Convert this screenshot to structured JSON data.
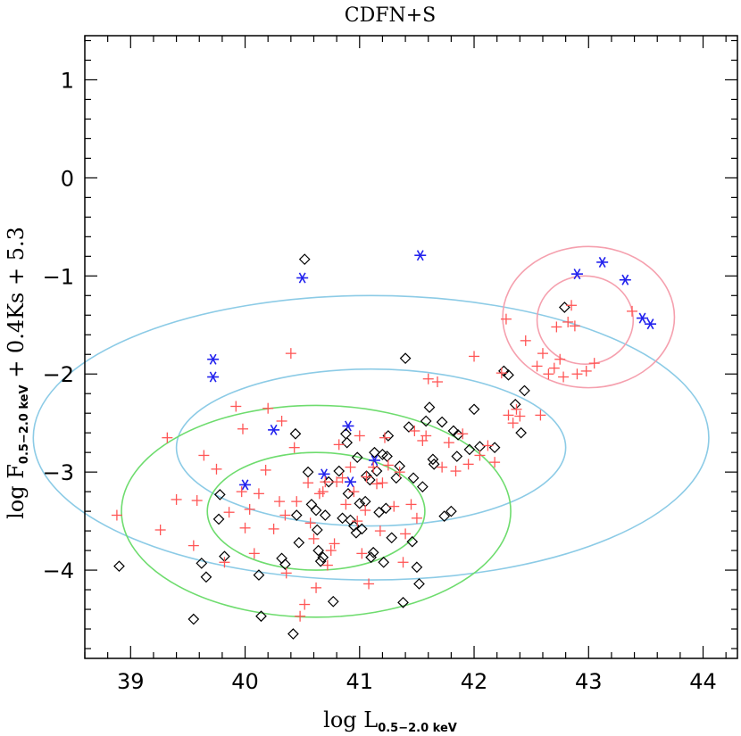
{
  "chart_data": {
    "type": "scatter",
    "title": "CDFN+S",
    "xlabel": {
      "main": "log L",
      "sub": "0.5−2.0 keV"
    },
    "ylabel": {
      "main": "log F",
      "sub": "0.5−2.0 keV",
      "suffix": " + 0.4Ks + 5.3"
    },
    "xlim": [
      38.6,
      44.3
    ],
    "ylim": [
      -4.9,
      1.45
    ],
    "xticks": [
      39,
      40,
      41,
      42,
      43,
      44
    ],
    "yticks": [
      1,
      0,
      -1,
      -2,
      -3,
      -4
    ],
    "xtick_labels": [
      "39",
      "40",
      "41",
      "42",
      "43",
      "44"
    ],
    "ytick_labels": [
      "1",
      "0",
      "−1",
      "−2",
      "−3",
      "−4"
    ],
    "colors": {
      "plus": "#ff5555",
      "diamond": "#000000",
      "asterisk": "#2222ee",
      "ellipse_blue": "#8ccbe6",
      "ellipse_green": "#6edc6e",
      "ellipse_pink": "#f5a0ae"
    },
    "ellipses": [
      {
        "name": "blue-outer",
        "cx": 41.1,
        "cy": -2.65,
        "rx": 2.95,
        "ry": 1.45,
        "color": "#8ccbe6"
      },
      {
        "name": "blue-inner",
        "cx": 41.1,
        "cy": -2.75,
        "rx": 1.7,
        "ry": 0.8,
        "color": "#8ccbe6"
      },
      {
        "name": "green-outer",
        "cx": 40.62,
        "cy": -3.4,
        "rx": 1.7,
        "ry": 1.08,
        "color": "#6edc6e"
      },
      {
        "name": "green-inner",
        "cx": 40.62,
        "cy": -3.4,
        "rx": 0.95,
        "ry": 0.6,
        "color": "#6edc6e"
      },
      {
        "name": "pink-outer",
        "cx": 43.0,
        "cy": -1.42,
        "rx": 0.75,
        "ry": 0.72,
        "color": "#f5a0ae"
      },
      {
        "name": "pink-inner",
        "cx": 42.97,
        "cy": -1.45,
        "rx": 0.42,
        "ry": 0.45,
        "color": "#f5a0ae"
      }
    ],
    "series": [
      {
        "name": "asterisk",
        "marker": "asterisk",
        "color": "#2222ee",
        "points": [
          [
            39.72,
            -1.85
          ],
          [
            39.72,
            -2.03
          ],
          [
            40.0,
            -3.13
          ],
          [
            40.25,
            -2.57
          ],
          [
            40.5,
            -1.02
          ],
          [
            40.69,
            -3.02
          ],
          [
            40.9,
            -2.53
          ],
          [
            40.92,
            -3.1
          ],
          [
            41.13,
            -2.88
          ],
          [
            41.53,
            -0.79
          ],
          [
            42.9,
            -0.98
          ],
          [
            43.12,
            -0.86
          ],
          [
            43.32,
            -1.04
          ],
          [
            43.47,
            -1.43
          ],
          [
            43.54,
            -1.49
          ]
        ]
      },
      {
        "name": "diamond",
        "marker": "diamond",
        "color": "#000000",
        "points": [
          [
            38.9,
            -3.96
          ],
          [
            39.55,
            -4.5
          ],
          [
            39.62,
            -3.93
          ],
          [
            39.66,
            -4.07
          ],
          [
            39.78,
            -3.23
          ],
          [
            39.77,
            -3.48
          ],
          [
            39.82,
            -3.86
          ],
          [
            40.12,
            -4.05
          ],
          [
            40.14,
            -4.47
          ],
          [
            40.32,
            -3.88
          ],
          [
            40.35,
            -3.94
          ],
          [
            40.42,
            -4.65
          ],
          [
            40.44,
            -2.61
          ],
          [
            40.45,
            -3.44
          ],
          [
            40.47,
            -3.72
          ],
          [
            40.52,
            -0.83
          ],
          [
            40.55,
            -3.0
          ],
          [
            40.58,
            -3.33
          ],
          [
            40.62,
            -3.39
          ],
          [
            40.63,
            -3.59
          ],
          [
            40.64,
            -3.8
          ],
          [
            40.66,
            -3.91
          ],
          [
            40.68,
            -3.87
          ],
          [
            40.7,
            -3.44
          ],
          [
            40.73,
            -3.1
          ],
          [
            40.77,
            -4.32
          ],
          [
            40.82,
            -2.99
          ],
          [
            40.85,
            -3.47
          ],
          [
            40.88,
            -2.61
          ],
          [
            40.89,
            -2.7
          ],
          [
            40.9,
            -3.22
          ],
          [
            40.92,
            -3.49
          ],
          [
            40.95,
            -3.55
          ],
          [
            40.97,
            -3.62
          ],
          [
            40.98,
            -2.85
          ],
          [
            41.0,
            -3.32
          ],
          [
            41.02,
            -3.58
          ],
          [
            41.05,
            -3.3
          ],
          [
            41.06,
            -3.04
          ],
          [
            41.09,
            -3.08
          ],
          [
            41.1,
            -3.87
          ],
          [
            41.12,
            -3.82
          ],
          [
            41.13,
            -2.8
          ],
          [
            41.15,
            -2.99
          ],
          [
            41.17,
            -3.41
          ],
          [
            41.2,
            -2.82
          ],
          [
            41.21,
            -3.92
          ],
          [
            41.23,
            -3.37
          ],
          [
            41.24,
            -2.84
          ],
          [
            41.25,
            -2.63
          ],
          [
            41.28,
            -3.67
          ],
          [
            41.32,
            -3.06
          ],
          [
            41.35,
            -2.94
          ],
          [
            41.38,
            -4.33
          ],
          [
            41.4,
            -1.84
          ],
          [
            41.43,
            -2.54
          ],
          [
            41.46,
            -3.71
          ],
          [
            41.47,
            -3.06
          ],
          [
            41.5,
            -3.97
          ],
          [
            41.52,
            -4.14
          ],
          [
            41.55,
            -3.15
          ],
          [
            41.58,
            -2.48
          ],
          [
            41.61,
            -2.34
          ],
          [
            41.64,
            -2.87
          ],
          [
            41.65,
            -2.92
          ],
          [
            41.72,
            -2.49
          ],
          [
            41.74,
            -3.45
          ],
          [
            41.8,
            -3.4
          ],
          [
            41.82,
            -2.58
          ],
          [
            41.85,
            -2.84
          ],
          [
            41.86,
            -2.62
          ],
          [
            41.96,
            -2.77
          ],
          [
            42.0,
            -2.36
          ],
          [
            42.05,
            -2.74
          ],
          [
            42.18,
            -2.75
          ],
          [
            42.26,
            -1.97
          ],
          [
            42.3,
            -2.01
          ],
          [
            42.36,
            -2.31
          ],
          [
            42.41,
            -2.6
          ],
          [
            42.44,
            -2.17
          ],
          [
            42.79,
            -1.32
          ]
        ]
      },
      {
        "name": "plus",
        "marker": "plus",
        "color": "#ff5555",
        "points": [
          [
            38.88,
            -3.44
          ],
          [
            39.26,
            -3.59
          ],
          [
            39.32,
            -2.65
          ],
          [
            39.4,
            -3.28
          ],
          [
            39.55,
            -3.75
          ],
          [
            39.58,
            -3.29
          ],
          [
            39.64,
            -2.83
          ],
          [
            39.75,
            -2.97
          ],
          [
            39.82,
            -3.92
          ],
          [
            39.86,
            -3.41
          ],
          [
            39.92,
            -2.33
          ],
          [
            39.97,
            -3.2
          ],
          [
            39.98,
            -2.56
          ],
          [
            40.0,
            -3.57
          ],
          [
            40.04,
            -3.38
          ],
          [
            40.08,
            -3.83
          ],
          [
            40.12,
            -3.22
          ],
          [
            40.18,
            -2.98
          ],
          [
            40.2,
            -2.35
          ],
          [
            40.25,
            -3.58
          ],
          [
            40.3,
            -3.3
          ],
          [
            40.32,
            -2.48
          ],
          [
            40.35,
            -3.44
          ],
          [
            40.36,
            -4.03
          ],
          [
            40.4,
            -1.79
          ],
          [
            40.43,
            -2.75
          ],
          [
            40.45,
            -3.3
          ],
          [
            40.48,
            -4.47
          ],
          [
            40.52,
            -4.35
          ],
          [
            40.55,
            -3.11
          ],
          [
            40.57,
            -3.52
          ],
          [
            40.6,
            -3.68
          ],
          [
            40.62,
            -4.18
          ],
          [
            40.65,
            -3.22
          ],
          [
            40.68,
            -3.2
          ],
          [
            40.7,
            -3.1
          ],
          [
            40.72,
            -3.95
          ],
          [
            40.75,
            -3.8
          ],
          [
            40.78,
            -3.73
          ],
          [
            40.8,
            -3.1
          ],
          [
            40.82,
            -2.72
          ],
          [
            40.85,
            -3.06
          ],
          [
            40.88,
            -3.33
          ],
          [
            40.92,
            -2.95
          ],
          [
            40.95,
            -3.2
          ],
          [
            40.98,
            -3.5
          ],
          [
            41.0,
            -2.63
          ],
          [
            41.02,
            -3.83
          ],
          [
            41.05,
            -3.39
          ],
          [
            41.06,
            -3.05
          ],
          [
            41.08,
            -4.14
          ],
          [
            41.12,
            -2.95
          ],
          [
            41.15,
            -3.12
          ],
          [
            41.18,
            -3.6
          ],
          [
            41.2,
            -3.11
          ],
          [
            41.22,
            -2.65
          ],
          [
            41.25,
            -2.93
          ],
          [
            41.3,
            -3.35
          ],
          [
            41.35,
            -3.0
          ],
          [
            41.38,
            -3.92
          ],
          [
            41.4,
            -3.63
          ],
          [
            41.45,
            -3.33
          ],
          [
            41.48,
            -2.58
          ],
          [
            41.5,
            -3.47
          ],
          [
            41.55,
            -2.68
          ],
          [
            41.58,
            -2.63
          ],
          [
            41.6,
            -2.05
          ],
          [
            41.68,
            -2.08
          ],
          [
            41.72,
            -2.95
          ],
          [
            41.78,
            -2.7
          ],
          [
            41.84,
            -2.99
          ],
          [
            41.9,
            -2.61
          ],
          [
            41.95,
            -2.92
          ],
          [
            42.0,
            -1.82
          ],
          [
            42.05,
            -2.83
          ],
          [
            42.12,
            -2.73
          ],
          [
            42.18,
            -2.9
          ],
          [
            42.24,
            -1.99
          ],
          [
            42.28,
            -1.44
          ],
          [
            42.3,
            -2.42
          ],
          [
            42.34,
            -2.5
          ],
          [
            42.37,
            -2.36
          ],
          [
            42.4,
            -2.43
          ],
          [
            42.45,
            -1.66
          ],
          [
            42.55,
            -1.92
          ],
          [
            42.58,
            -2.42
          ],
          [
            42.6,
            -1.79
          ],
          [
            42.65,
            -2.0
          ],
          [
            42.7,
            -1.94
          ],
          [
            42.72,
            -1.52
          ],
          [
            42.75,
            -1.85
          ],
          [
            42.78,
            -2.03
          ],
          [
            42.82,
            -1.47
          ],
          [
            42.85,
            -1.3
          ],
          [
            42.88,
            -1.51
          ],
          [
            42.9,
            -2.0
          ],
          [
            42.98,
            -1.97
          ],
          [
            43.05,
            -1.89
          ],
          [
            43.38,
            -1.36
          ]
        ]
      }
    ]
  }
}
